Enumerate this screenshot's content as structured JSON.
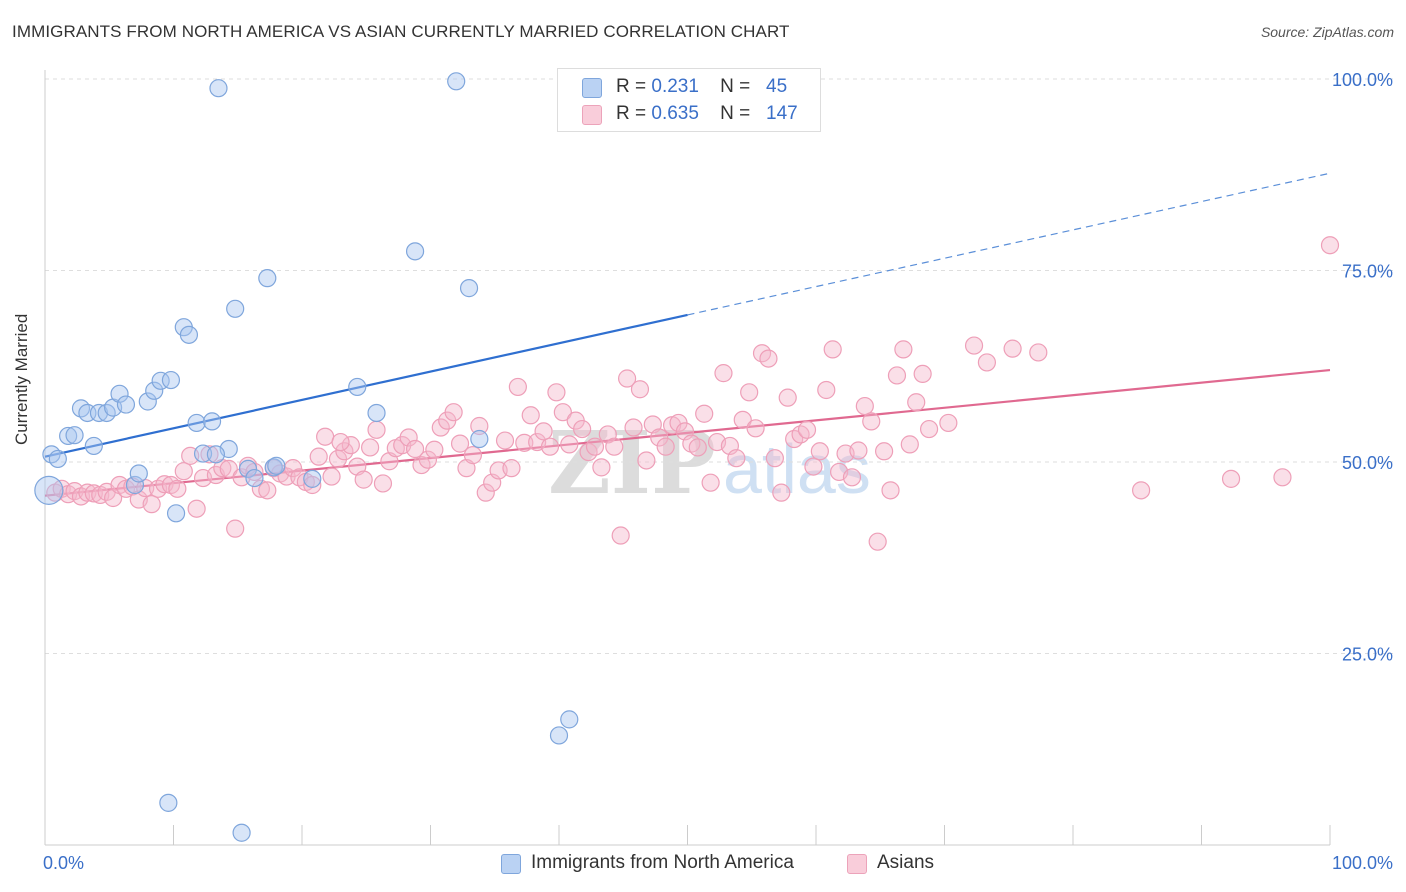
{
  "header": {
    "title": "IMMIGRANTS FROM NORTH AMERICA VS ASIAN CURRENTLY MARRIED CORRELATION CHART",
    "source": "Source: ZipAtlas.com"
  },
  "watermark": {
    "zip": "ZIP",
    "atlas": "atlas"
  },
  "legend_top": [
    {
      "r_label": "R =",
      "r_value": "0.231",
      "n_label": "N =",
      "n_value": "45",
      "color": "#a9c6ef"
    },
    {
      "r_label": "R =",
      "r_value": "0.635",
      "n_label": "N =",
      "n_value": "147",
      "color": "#f5b8cb"
    }
  ],
  "legend_bottom": [
    {
      "label": "Immigrants from North America",
      "color": "#a9c6ef"
    },
    {
      "label": "Asians",
      "color": "#f5b8cb"
    }
  ],
  "chart_data": {
    "type": "scatter",
    "title": "IMMIGRANTS FROM NORTH AMERICA VS ASIAN CURRENTLY MARRIED CORRELATION CHART",
    "xlabel": "",
    "ylabel": "Currently Married",
    "xlim": [
      0,
      100
    ],
    "ylim": [
      0,
      100
    ],
    "x_tick_labels": [
      "0.0%",
      "100.0%"
    ],
    "y_tick_labels": [
      "100.0%",
      "75.0%",
      "50.0%",
      "25.0%"
    ],
    "y_ticks": [
      100,
      75,
      50,
      25
    ],
    "grid": "horizontal dashed",
    "legend_position": "top-center and bottom",
    "colors": {
      "blue": "#5b8fd8",
      "blue_fill": "#a9c6ef",
      "pink": "#e8759a",
      "pink_fill": "#f5b8cb",
      "axis_text": "#3a6fc8"
    },
    "series": [
      {
        "name": "Immigrants from North America",
        "color": "#5b8fd8",
        "r": 0.231,
        "n": 45,
        "trend": {
          "x0": 0,
          "y0": 50.7,
          "x1": 50,
          "y1": 69.2,
          "dashed_to_x": 100,
          "dashed_to_y": 87.7
        },
        "points": [
          [
            0.3,
            46.3
          ],
          [
            0.5,
            51.0
          ],
          [
            1.0,
            50.4
          ],
          [
            1.8,
            53.4
          ],
          [
            2.3,
            53.5
          ],
          [
            2.8,
            57.0
          ],
          [
            3.3,
            56.4
          ],
          [
            3.8,
            52.1
          ],
          [
            4.2,
            56.4
          ],
          [
            4.8,
            56.4
          ],
          [
            5.3,
            57.1
          ],
          [
            5.8,
            58.9
          ],
          [
            6.3,
            57.5
          ],
          [
            7.0,
            47.0
          ],
          [
            7.3,
            48.5
          ],
          [
            8.0,
            57.9
          ],
          [
            8.5,
            59.3
          ],
          [
            9.0,
            60.6
          ],
          [
            9.8,
            60.7
          ],
          [
            10.2,
            43.3
          ],
          [
            10.8,
            67.6
          ],
          [
            11.2,
            66.6
          ],
          [
            11.8,
            55.1
          ],
          [
            12.3,
            51.1
          ],
          [
            13.0,
            55.3
          ],
          [
            13.5,
            98.8
          ],
          [
            14.3,
            51.7
          ],
          [
            14.8,
            70.0
          ],
          [
            15.3,
            1.6
          ],
          [
            15.8,
            49.1
          ],
          [
            16.3,
            47.9
          ],
          [
            17.3,
            74.0
          ],
          [
            17.8,
            49.3
          ],
          [
            20.8,
            47.8
          ],
          [
            24.3,
            59.8
          ],
          [
            25.8,
            56.4
          ],
          [
            28.8,
            77.5
          ],
          [
            32.0,
            99.7
          ],
          [
            33.0,
            72.7
          ],
          [
            33.8,
            53.0
          ],
          [
            40.0,
            14.3
          ],
          [
            40.8,
            16.4
          ],
          [
            9.6,
            5.5
          ],
          [
            13.3,
            51.0
          ],
          [
            18.0,
            49.5
          ]
        ]
      },
      {
        "name": "Asians",
        "color": "#e8759a",
        "r": 0.635,
        "n": 147,
        "trend": {
          "x0": 0,
          "y0": 45.6,
          "x1": 100,
          "y1": 62.0
        },
        "points": [
          [
            0.8,
            46.0
          ],
          [
            1.3,
            46.5
          ],
          [
            1.8,
            45.8
          ],
          [
            2.3,
            46.2
          ],
          [
            2.8,
            45.5
          ],
          [
            3.3,
            46.0
          ],
          [
            3.8,
            45.9
          ],
          [
            4.3,
            45.7
          ],
          [
            4.8,
            46.1
          ],
          [
            5.3,
            45.3
          ],
          [
            5.8,
            47.0
          ],
          [
            6.3,
            46.5
          ],
          [
            6.8,
            46.8
          ],
          [
            7.3,
            45.1
          ],
          [
            7.8,
            46.6
          ],
          [
            8.3,
            44.5
          ],
          [
            8.8,
            46.5
          ],
          [
            9.3,
            47.1
          ],
          [
            9.8,
            47.0
          ],
          [
            10.3,
            46.5
          ],
          [
            10.8,
            48.8
          ],
          [
            11.3,
            50.8
          ],
          [
            11.8,
            43.9
          ],
          [
            12.3,
            47.9
          ],
          [
            12.8,
            51.0
          ],
          [
            13.3,
            48.3
          ],
          [
            13.8,
            49.2
          ],
          [
            14.3,
            49.1
          ],
          [
            14.8,
            41.3
          ],
          [
            15.3,
            48.0
          ],
          [
            15.8,
            49.5
          ],
          [
            16.3,
            48.7
          ],
          [
            16.8,
            46.5
          ],
          [
            17.3,
            46.3
          ],
          [
            17.8,
            49.2
          ],
          [
            18.3,
            48.5
          ],
          [
            18.8,
            48.1
          ],
          [
            19.3,
            49.2
          ],
          [
            19.8,
            48.0
          ],
          [
            20.3,
            47.4
          ],
          [
            20.8,
            47.0
          ],
          [
            21.3,
            50.7
          ],
          [
            21.8,
            53.3
          ],
          [
            22.3,
            48.1
          ],
          [
            22.8,
            50.4
          ],
          [
            23.3,
            51.4
          ],
          [
            23.8,
            52.2
          ],
          [
            24.3,
            49.4
          ],
          [
            24.8,
            47.7
          ],
          [
            25.3,
            51.9
          ],
          [
            25.8,
            54.2
          ],
          [
            26.3,
            47.2
          ],
          [
            26.8,
            50.1
          ],
          [
            27.3,
            51.8
          ],
          [
            27.8,
            52.2
          ],
          [
            28.3,
            53.2
          ],
          [
            28.8,
            51.7
          ],
          [
            29.3,
            49.6
          ],
          [
            29.8,
            50.3
          ],
          [
            30.3,
            51.6
          ],
          [
            30.8,
            54.5
          ],
          [
            31.3,
            55.4
          ],
          [
            31.8,
            56.5
          ],
          [
            32.3,
            52.4
          ],
          [
            32.8,
            49.2
          ],
          [
            33.3,
            50.9
          ],
          [
            33.8,
            54.7
          ],
          [
            34.3,
            46.0
          ],
          [
            34.8,
            47.3
          ],
          [
            35.3,
            48.9
          ],
          [
            35.8,
            52.8
          ],
          [
            36.3,
            49.2
          ],
          [
            36.8,
            59.8
          ],
          [
            37.3,
            52.5
          ],
          [
            37.8,
            56.1
          ],
          [
            38.3,
            52.6
          ],
          [
            38.8,
            54.0
          ],
          [
            39.3,
            52.0
          ],
          [
            39.8,
            59.1
          ],
          [
            40.3,
            56.5
          ],
          [
            40.8,
            52.3
          ],
          [
            41.3,
            55.4
          ],
          [
            41.8,
            54.3
          ],
          [
            42.3,
            51.3
          ],
          [
            42.8,
            52.0
          ],
          [
            43.3,
            49.3
          ],
          [
            43.8,
            53.6
          ],
          [
            44.3,
            52.0
          ],
          [
            44.8,
            40.4
          ],
          [
            45.3,
            60.9
          ],
          [
            45.8,
            54.5
          ],
          [
            46.3,
            59.5
          ],
          [
            46.8,
            50.2
          ],
          [
            47.3,
            54.9
          ],
          [
            47.8,
            53.2
          ],
          [
            48.3,
            52.0
          ],
          [
            48.8,
            54.8
          ],
          [
            49.3,
            55.1
          ],
          [
            49.8,
            54.0
          ],
          [
            50.3,
            52.4
          ],
          [
            50.8,
            51.9
          ],
          [
            51.3,
            56.3
          ],
          [
            51.8,
            47.3
          ],
          [
            52.3,
            52.6
          ],
          [
            52.8,
            61.6
          ],
          [
            53.3,
            52.1
          ],
          [
            53.8,
            50.5
          ],
          [
            54.3,
            55.5
          ],
          [
            54.8,
            59.1
          ],
          [
            55.3,
            54.4
          ],
          [
            55.8,
            64.2
          ],
          [
            56.3,
            63.5
          ],
          [
            56.8,
            50.5
          ],
          [
            57.3,
            46.0
          ],
          [
            57.8,
            58.4
          ],
          [
            58.3,
            53.0
          ],
          [
            58.8,
            53.6
          ],
          [
            59.3,
            54.2
          ],
          [
            59.8,
            49.4
          ],
          [
            60.3,
            51.4
          ],
          [
            60.8,
            59.4
          ],
          [
            61.3,
            64.7
          ],
          [
            61.8,
            48.7
          ],
          [
            62.3,
            51.1
          ],
          [
            62.8,
            48.0
          ],
          [
            63.3,
            51.5
          ],
          [
            63.8,
            57.3
          ],
          [
            64.3,
            55.3
          ],
          [
            64.8,
            39.6
          ],
          [
            65.3,
            51.4
          ],
          [
            65.8,
            46.3
          ],
          [
            66.3,
            61.3
          ],
          [
            66.8,
            64.7
          ],
          [
            67.3,
            52.3
          ],
          [
            67.8,
            57.8
          ],
          [
            68.3,
            61.5
          ],
          [
            68.8,
            54.3
          ],
          [
            70.3,
            55.1
          ],
          [
            72.3,
            65.2
          ],
          [
            73.3,
            63.0
          ],
          [
            75.3,
            64.8
          ],
          [
            77.3,
            64.3
          ],
          [
            85.3,
            46.3
          ],
          [
            100.0,
            78.3
          ],
          [
            96.3,
            48.0
          ],
          [
            92.3,
            47.8
          ],
          [
            23.0,
            52.6
          ]
        ]
      }
    ]
  }
}
